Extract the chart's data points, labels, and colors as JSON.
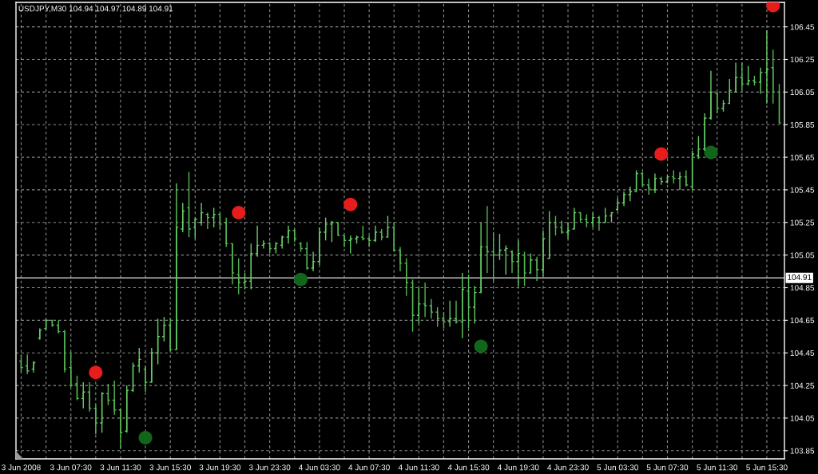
{
  "chart_data": {
    "type": "candlestick",
    "title": "USDJPY,M30 104.94 104.97 104.89 104.91",
    "x": [
      "2008-06-03T03:30",
      "2008-06-03T04:00",
      "2008-06-03T04:30",
      "2008-06-03T05:00",
      "2008-06-03T05:30",
      "2008-06-03T06:00",
      "2008-06-03T06:30",
      "2008-06-03T07:00",
      "2008-06-03T07:30",
      "2008-06-03T08:00",
      "2008-06-03T08:30",
      "2008-06-03T09:00",
      "2008-06-03T09:30",
      "2008-06-03T10:00",
      "2008-06-03T10:30",
      "2008-06-03T11:00",
      "2008-06-03T11:30",
      "2008-06-03T12:00",
      "2008-06-03T12:30",
      "2008-06-03T13:00",
      "2008-06-03T13:30",
      "2008-06-03T14:00",
      "2008-06-03T14:30",
      "2008-06-03T15:00",
      "2008-06-03T15:30",
      "2008-06-03T16:00",
      "2008-06-03T16:30",
      "2008-06-03T17:00",
      "2008-06-03T17:30",
      "2008-06-03T18:00",
      "2008-06-03T18:30",
      "2008-06-03T19:00",
      "2008-06-03T19:30",
      "2008-06-03T20:00",
      "2008-06-03T20:30",
      "2008-06-03T21:00",
      "2008-06-03T21:30",
      "2008-06-03T22:00",
      "2008-06-03T22:30",
      "2008-06-03T23:00",
      "2008-06-03T23:30",
      "2008-06-04T00:00",
      "2008-06-04T00:30",
      "2008-06-04T01:00",
      "2008-06-04T01:30",
      "2008-06-04T02:00",
      "2008-06-04T02:30",
      "2008-06-04T03:00",
      "2008-06-04T03:30",
      "2008-06-04T04:00",
      "2008-06-04T04:30",
      "2008-06-04T05:00",
      "2008-06-04T05:30",
      "2008-06-04T06:00",
      "2008-06-04T06:30",
      "2008-06-04T07:00",
      "2008-06-04T07:30",
      "2008-06-04T08:00",
      "2008-06-04T08:30",
      "2008-06-04T09:00",
      "2008-06-04T09:30",
      "2008-06-04T10:00",
      "2008-06-04T10:30",
      "2008-06-04T11:00",
      "2008-06-04T11:30",
      "2008-06-04T12:00",
      "2008-06-04T12:30",
      "2008-06-04T13:00",
      "2008-06-04T13:30",
      "2008-06-04T14:00",
      "2008-06-04T14:30",
      "2008-06-04T15:00",
      "2008-06-04T15:30",
      "2008-06-04T16:00",
      "2008-06-04T16:30",
      "2008-06-04T17:00",
      "2008-06-04T17:30",
      "2008-06-04T18:00",
      "2008-06-04T18:30",
      "2008-06-04T19:00",
      "2008-06-04T19:30",
      "2008-06-04T20:00",
      "2008-06-04T20:30",
      "2008-06-04T21:00",
      "2008-06-04T21:30",
      "2008-06-04T22:00",
      "2008-06-04T22:30",
      "2008-06-04T23:00",
      "2008-06-04T23:30",
      "2008-06-05T00:00",
      "2008-06-05T00:30",
      "2008-06-05T01:00",
      "2008-06-05T01:30",
      "2008-06-05T02:00",
      "2008-06-05T02:30",
      "2008-06-05T03:00",
      "2008-06-05T03:30",
      "2008-06-05T04:00",
      "2008-06-05T04:30",
      "2008-06-05T05:00",
      "2008-06-05T05:30",
      "2008-06-05T06:00",
      "2008-06-05T06:30",
      "2008-06-05T07:00",
      "2008-06-05T07:30",
      "2008-06-05T08:00",
      "2008-06-05T08:30",
      "2008-06-05T09:00",
      "2008-06-05T09:30",
      "2008-06-05T10:00",
      "2008-06-05T10:30",
      "2008-06-05T11:00",
      "2008-06-05T11:30",
      "2008-06-05T12:00",
      "2008-06-05T12:30",
      "2008-06-05T13:00",
      "2008-06-05T13:30",
      "2008-06-05T14:00",
      "2008-06-05T14:30",
      "2008-06-05T15:00",
      "2008-06-05T15:30",
      "2008-06-05T16:00",
      "2008-06-05T16:30"
    ],
    "ohlc": [
      [
        104.4,
        104.44,
        104.33,
        104.36
      ],
      [
        104.37,
        104.44,
        104.32,
        104.34
      ],
      [
        104.35,
        104.4,
        104.33,
        104.39
      ],
      [
        104.54,
        104.6,
        104.53,
        104.59
      ],
      [
        104.6,
        104.66,
        104.59,
        104.65
      ],
      [
        104.65,
        104.65,
        104.61,
        104.62
      ],
      [
        104.62,
        104.65,
        104.57,
        104.58
      ],
      [
        104.58,
        104.59,
        104.33,
        104.35
      ],
      [
        104.36,
        104.45,
        104.24,
        104.25
      ],
      [
        104.26,
        104.31,
        104.16,
        104.17
      ],
      [
        104.17,
        104.27,
        104.11,
        104.21
      ],
      [
        104.21,
        104.27,
        104.09,
        104.11
      ],
      [
        104.11,
        104.13,
        103.95,
        104.02
      ],
      [
        104.02,
        104.21,
        103.96,
        104.2
      ],
      [
        104.2,
        104.26,
        104.13,
        104.16
      ],
      [
        104.16,
        104.28,
        104.07,
        104.1
      ],
      [
        104.1,
        104.11,
        103.86,
        103.96
      ],
      [
        103.97,
        104.25,
        103.96,
        104.22
      ],
      [
        104.22,
        104.39,
        104.21,
        104.37
      ],
      [
        104.37,
        104.48,
        104.33,
        104.41
      ],
      [
        104.35,
        104.37,
        104.21,
        104.27
      ],
      [
        104.27,
        104.48,
        104.27,
        104.45
      ],
      [
        104.45,
        104.66,
        104.38,
        104.55
      ],
      [
        104.55,
        104.67,
        104.52,
        104.62
      ],
      [
        104.62,
        104.66,
        104.46,
        104.47
      ],
      [
        104.47,
        105.49,
        104.47,
        105.22
      ],
      [
        105.21,
        105.37,
        105.19,
        105.32
      ],
      [
        105.34,
        105.56,
        105.16,
        105.21
      ],
      [
        105.22,
        105.28,
        105.15,
        105.27
      ],
      [
        105.25,
        105.37,
        105.23,
        105.31
      ],
      [
        105.3,
        105.31,
        105.21,
        105.28
      ],
      [
        105.28,
        105.34,
        105.22,
        105.3
      ],
      [
        105.3,
        105.31,
        105.21,
        105.24
      ],
      [
        105.25,
        105.28,
        105.1,
        105.12
      ],
      [
        105.12,
        105.12,
        104.87,
        104.94
      ],
      [
        104.93,
        105.03,
        104.81,
        104.88
      ],
      [
        104.88,
        104.94,
        104.84,
        104.89
      ],
      [
        104.89,
        105.12,
        104.84,
        105.06
      ],
      [
        105.06,
        105.23,
        105.04,
        105.11
      ],
      [
        105.11,
        105.14,
        105.09,
        105.12
      ],
      [
        105.12,
        105.13,
        105.06,
        105.09
      ],
      [
        105.09,
        105.13,
        105.06,
        105.12
      ],
      [
        105.11,
        105.17,
        105.09,
        105.16
      ],
      [
        105.16,
        105.23,
        105.12,
        105.2
      ],
      [
        105.2,
        105.21,
        105.13,
        105.15
      ],
      [
        105.12,
        105.13,
        105.07,
        105.09
      ],
      [
        105.09,
        105.13,
        104.96,
        104.97
      ],
      [
        104.97,
        105.07,
        104.95,
        105.01
      ],
      [
        105.01,
        105.22,
        104.99,
        105.19
      ],
      [
        105.19,
        105.28,
        105.14,
        105.24
      ],
      [
        105.24,
        105.26,
        105.13,
        105.25
      ],
      [
        105.25,
        105.25,
        105.17,
        105.17
      ],
      [
        105.17,
        105.17,
        105.1,
        105.14
      ],
      [
        105.14,
        105.17,
        105.06,
        105.15
      ],
      [
        105.15,
        105.17,
        105.12,
        105.16
      ],
      [
        105.16,
        105.23,
        105.14,
        105.15
      ],
      [
        105.15,
        105.17,
        105.1,
        105.14
      ],
      [
        105.14,
        105.23,
        105.13,
        105.19
      ],
      [
        105.19,
        105.21,
        105.14,
        105.16
      ],
      [
        105.16,
        105.29,
        105.16,
        105.22
      ],
      [
        105.22,
        105.25,
        105.07,
        105.08
      ],
      [
        105.08,
        105.1,
        104.95,
        105.0
      ],
      [
        105.0,
        105.03,
        104.8,
        104.88
      ],
      [
        104.88,
        104.9,
        104.58,
        104.68
      ],
      [
        104.68,
        104.85,
        104.63,
        104.75
      ],
      [
        104.75,
        104.88,
        104.67,
        104.74
      ],
      [
        104.74,
        104.78,
        104.66,
        104.7
      ],
      [
        104.7,
        104.73,
        104.61,
        104.66
      ],
      [
        104.66,
        104.7,
        104.6,
        104.64
      ],
      [
        104.64,
        104.77,
        104.61,
        104.66
      ],
      [
        104.66,
        104.77,
        104.63,
        104.64
      ],
      [
        104.64,
        104.94,
        104.54,
        104.84
      ],
      [
        104.83,
        104.93,
        104.6,
        104.73
      ],
      [
        104.73,
        104.86,
        104.63,
        104.82
      ],
      [
        104.82,
        105.25,
        104.82,
        105.1
      ],
      [
        105.1,
        105.35,
        104.94,
        105.07
      ],
      [
        105.07,
        105.19,
        104.89,
        105.05
      ],
      [
        105.05,
        105.18,
        105.02,
        105.08
      ],
      [
        105.08,
        105.11,
        104.93,
        105.09
      ],
      [
        105.07,
        105.08,
        104.94,
        105.01
      ],
      [
        105.01,
        105.14,
        104.86,
        105.06
      ],
      [
        105.05,
        105.07,
        104.86,
        104.94
      ],
      [
        104.94,
        105.06,
        104.94,
        105.02
      ],
      [
        105.02,
        105.04,
        104.89,
        104.96
      ],
      [
        104.96,
        105.2,
        104.92,
        105.15
      ],
      [
        105.03,
        105.32,
        105.03,
        105.25
      ],
      [
        105.25,
        105.29,
        105.17,
        105.22
      ],
      [
        105.22,
        105.26,
        105.18,
        105.19
      ],
      [
        105.19,
        105.25,
        105.15,
        105.2
      ],
      [
        105.21,
        105.34,
        105.21,
        105.31
      ],
      [
        105.31,
        105.31,
        105.25,
        105.27
      ],
      [
        105.27,
        105.3,
        105.22,
        105.25
      ],
      [
        105.25,
        105.31,
        105.22,
        105.28
      ],
      [
        105.28,
        105.29,
        105.2,
        105.25
      ],
      [
        105.25,
        105.34,
        105.25,
        105.29
      ],
      [
        105.29,
        105.31,
        105.25,
        105.31
      ],
      [
        105.33,
        105.4,
        105.32,
        105.37
      ],
      [
        105.37,
        105.44,
        105.35,
        105.42
      ],
      [
        105.42,
        105.47,
        105.38,
        105.44
      ],
      [
        105.44,
        105.57,
        105.44,
        105.55
      ],
      [
        105.55,
        105.56,
        105.47,
        105.48
      ],
      [
        105.48,
        105.52,
        105.42,
        105.46
      ],
      [
        105.45,
        105.55,
        105.43,
        105.52
      ],
      [
        105.52,
        105.53,
        105.48,
        105.5
      ],
      [
        105.5,
        105.54,
        105.49,
        105.53
      ],
      [
        105.53,
        105.57,
        105.49,
        105.52
      ],
      [
        105.52,
        105.56,
        105.45,
        105.53
      ],
      [
        105.53,
        105.57,
        105.47,
        105.48
      ],
      [
        105.47,
        105.69,
        105.45,
        105.67
      ],
      [
        105.66,
        105.78,
        105.64,
        105.7
      ],
      [
        105.7,
        105.92,
        105.69,
        105.89
      ],
      [
        105.89,
        106.18,
        105.88,
        106.05
      ],
      [
        106.04,
        106.05,
        105.92,
        105.95
      ],
      [
        105.95,
        106.0,
        105.93,
        105.98
      ],
      [
        105.98,
        106.13,
        105.98,
        106.06
      ],
      [
        106.05,
        106.23,
        106.05,
        106.14
      ],
      [
        106.14,
        106.23,
        106.06,
        106.1
      ],
      [
        106.1,
        106.21,
        106.09,
        106.12
      ],
      [
        106.12,
        106.15,
        106.09,
        106.11
      ],
      [
        106.11,
        106.2,
        106.04,
        106.17
      ],
      [
        106.17,
        106.43,
        105.98,
        106.19
      ],
      [
        106.2,
        106.31,
        105.98,
        106.05
      ],
      [
        106.05,
        106.1,
        105.86,
        105.86
      ]
    ],
    "colors": [
      "#55b855",
      "#55b855",
      "#66cc66",
      "#66cc66",
      "#66cc66",
      "#55b855",
      "#55b855",
      "#55b855",
      "#55b855",
      "#55b855",
      "#66cc66",
      "#55b855",
      "#55b855",
      "#66cc66",
      "#55b855",
      "#55b855",
      "#55b855",
      "#66cc66",
      "#66cc66",
      "#66cc66",
      "#55b855",
      "#66cc66",
      "#66cc66",
      "#66cc66",
      "#55b855",
      "#66cc66",
      "#66cc66",
      "#55b855",
      "#66cc66",
      "#66cc66",
      "#55b855",
      "#66cc66",
      "#55b855",
      "#55b855",
      "#55b855",
      "#55b855",
      "#66cc66",
      "#66cc66",
      "#66cc66",
      "#66cc66",
      "#55b855",
      "#66cc66",
      "#66cc66",
      "#66cc66",
      "#55b855",
      "#55b855",
      "#55b855",
      "#66cc66",
      "#66cc66",
      "#66cc66",
      "#66cc66",
      "#55b855",
      "#55b855",
      "#66cc66",
      "#66cc66",
      "#55b855",
      "#55b855",
      "#66cc66",
      "#55b855",
      "#66cc66",
      "#55b855",
      "#55b855",
      "#55b855",
      "#55b855",
      "#66cc66",
      "#55b855",
      "#55b855",
      "#55b855",
      "#55b855",
      "#66cc66",
      "#55b855",
      "#66cc66",
      "#55b855",
      "#66cc66",
      "#66cc66",
      "#55b855",
      "#55b855",
      "#66cc66",
      "#66cc66",
      "#55b855",
      "#66cc66",
      "#55b855",
      "#66cc66",
      "#55b855",
      "#66cc66",
      "#66cc66",
      "#55b855",
      "#55b855",
      "#66cc66",
      "#66cc66",
      "#55b855",
      "#55b855",
      "#66cc66",
      "#55b855",
      "#66cc66",
      "#66cc66",
      "#66cc66",
      "#66cc66",
      "#66cc66",
      "#66cc66",
      "#55b855",
      "#55b855",
      "#66cc66",
      "#55b855",
      "#66cc66",
      "#55b855",
      "#66cc66",
      "#55b855",
      "#66cc66",
      "#66cc66",
      "#66cc66",
      "#66cc66",
      "#55b855",
      "#66cc66",
      "#66cc66",
      "#66cc66",
      "#55b855",
      "#66cc66",
      "#55b855",
      "#66cc66",
      "#66cc66",
      "#55b855",
      "#55b855"
    ],
    "series": [
      {
        "type": "scatter",
        "color": "#e81c1c",
        "marker": "circle",
        "x": [
          "2008-06-03T09:30",
          "2008-06-03T21:00",
          "2008-06-04T06:00",
          "2008-06-05T07:00",
          "2008-06-05T16:00"
        ],
        "values": [
          104.33,
          105.31,
          105.36,
          105.67,
          106.58
        ]
      },
      {
        "type": "scatter",
        "color": "#11661c",
        "marker": "circle",
        "x": [
          "2008-06-03T13:30",
          "2008-06-04T02:00",
          "2008-06-04T16:30",
          "2008-06-05T11:00"
        ],
        "values": [
          103.93,
          104.9,
          104.49,
          105.68
        ]
      }
    ],
    "xlim": [
      "2008-06-03T03:05",
      "2008-06-05T16:55"
    ],
    "xticks": [
      {
        "value": "2008-06-03T03:30",
        "label": "3 Jun 2008"
      },
      {
        "value": "2008-06-03T05:30",
        "label": null
      },
      {
        "value": "2008-06-03T07:30",
        "label": "3 Jun 07:30"
      },
      {
        "value": "2008-06-03T09:30",
        "label": null
      },
      {
        "value": "2008-06-03T11:30",
        "label": "3 Jun 11:30"
      },
      {
        "value": "2008-06-03T13:30",
        "label": null
      },
      {
        "value": "2008-06-03T15:30",
        "label": "3 Jun 15:30"
      },
      {
        "value": "2008-06-03T17:30",
        "label": null
      },
      {
        "value": "2008-06-03T19:30",
        "label": "3 Jun 19:30"
      },
      {
        "value": "2008-06-03T21:30",
        "label": null
      },
      {
        "value": "2008-06-03T23:30",
        "label": "3 Jun 23:30"
      },
      {
        "value": "2008-06-04T01:30",
        "label": null
      },
      {
        "value": "2008-06-04T03:30",
        "label": "4 Jun 03:30"
      },
      {
        "value": "2008-06-04T05:30",
        "label": null
      },
      {
        "value": "2008-06-04T07:30",
        "label": "4 Jun 07:30"
      },
      {
        "value": "2008-06-04T09:30",
        "label": null
      },
      {
        "value": "2008-06-04T11:30",
        "label": "4 Jun 11:30"
      },
      {
        "value": "2008-06-04T13:30",
        "label": null
      },
      {
        "value": "2008-06-04T15:30",
        "label": "4 Jun 15:30"
      },
      {
        "value": "2008-06-04T17:30",
        "label": null
      },
      {
        "value": "2008-06-04T19:30",
        "label": "4 Jun 19:30"
      },
      {
        "value": "2008-06-04T21:30",
        "label": null
      },
      {
        "value": "2008-06-04T23:30",
        "label": "4 Jun 23:30"
      },
      {
        "value": "2008-06-05T01:30",
        "label": null
      },
      {
        "value": "2008-06-05T03:30",
        "label": "5 Jun 03:30"
      },
      {
        "value": "2008-06-05T05:30",
        "label": null
      },
      {
        "value": "2008-06-05T07:30",
        "label": "5 Jun 07:30"
      },
      {
        "value": "2008-06-05T09:30",
        "label": null
      },
      {
        "value": "2008-06-05T11:30",
        "label": "5 Jun 11:30"
      },
      {
        "value": "2008-06-05T13:30",
        "label": null
      },
      {
        "value": "2008-06-05T15:30",
        "label": "5 Jun 15:30"
      }
    ],
    "ylim": [
      103.8,
      106.6
    ],
    "yticks": [
      103.85,
      104.05,
      104.25,
      104.45,
      104.65,
      104.85,
      105.05,
      105.25,
      105.45,
      105.65,
      105.85,
      106.05,
      106.25,
      106.45
    ],
    "ref_lines": [
      {
        "axis": "y",
        "value": 104.91,
        "label": "104.91",
        "color": "#c0c0c0"
      }
    ],
    "grid": true
  }
}
